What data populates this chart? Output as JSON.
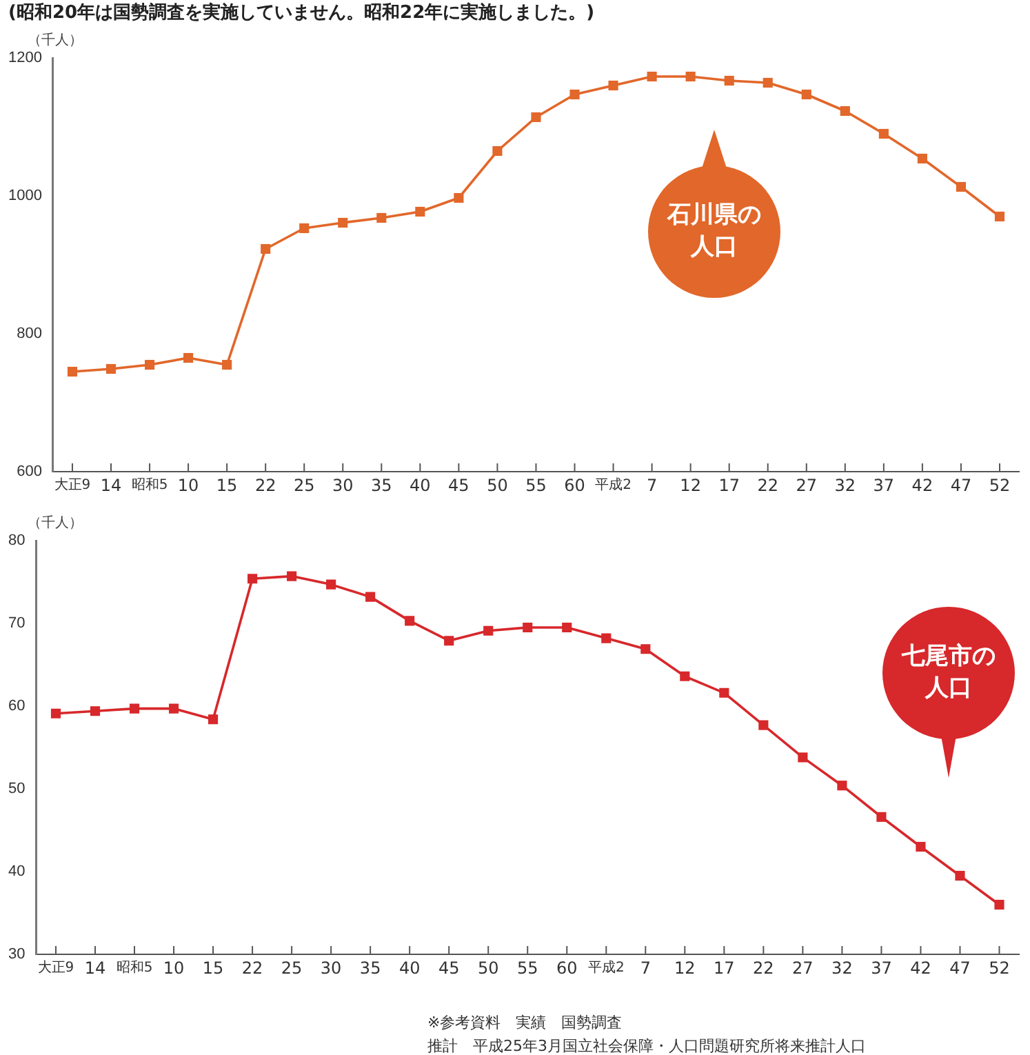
{
  "chart_data": [
    {
      "type": "line",
      "title": "(昭和20年は国勢調査を実施していません。昭和22年に実施しました。)",
      "ylabel": "（千人）",
      "categories": [
        "大正9",
        "14",
        "昭和5",
        "10",
        "15",
        "22",
        "25",
        "30",
        "35",
        "40",
        "45",
        "50",
        "55",
        "60",
        "平成2",
        "7",
        "12",
        "17",
        "22",
        "27",
        "32",
        "37",
        "42",
        "47",
        "52"
      ],
      "series": [
        {
          "name": "石川県の人口",
          "color": "#e2672a",
          "values": [
            745,
            749,
            755,
            765,
            755,
            923,
            953,
            961,
            968,
            977,
            997,
            1065,
            1114,
            1147,
            1160,
            1173,
            1173,
            1167,
            1164,
            1147,
            1123,
            1090,
            1054,
            1013,
            970
          ]
        }
      ],
      "ylim": [
        600,
        1200
      ],
      "yticks": [
        600,
        800,
        1000,
        1200
      ],
      "grid": false,
      "legend": false,
      "marker": "square",
      "line_style": "solid"
    },
    {
      "type": "line",
      "ylabel": "（千人）",
      "categories": [
        "大正9",
        "14",
        "昭和5",
        "10",
        "15",
        "22",
        "25",
        "30",
        "35",
        "40",
        "45",
        "50",
        "55",
        "60",
        "平成2",
        "7",
        "12",
        "17",
        "22",
        "27",
        "32",
        "37",
        "42",
        "47",
        "52"
      ],
      "series": [
        {
          "name": "七尾市の人口",
          "color": "#d7282b",
          "values": [
            59.1,
            59.4,
            59.7,
            59.7,
            58.4,
            75.4,
            75.7,
            74.7,
            73.2,
            70.3,
            67.9,
            69.1,
            69.5,
            69.5,
            68.2,
            66.9,
            63.6,
            61.6,
            57.7,
            53.8,
            50.4,
            46.6,
            43.0,
            39.5,
            36.0
          ]
        }
      ],
      "ylim": [
        30,
        80
      ],
      "yticks": [
        30,
        40,
        50,
        60,
        70,
        80
      ],
      "grid": false,
      "legend": false,
      "marker": "square",
      "line_style": "solid",
      "annotations": [
        "※参考資料　実績　国勢調査",
        "推計　平成25年3月国立社会保障・人口問題研究所将来推計人口"
      ]
    }
  ]
}
